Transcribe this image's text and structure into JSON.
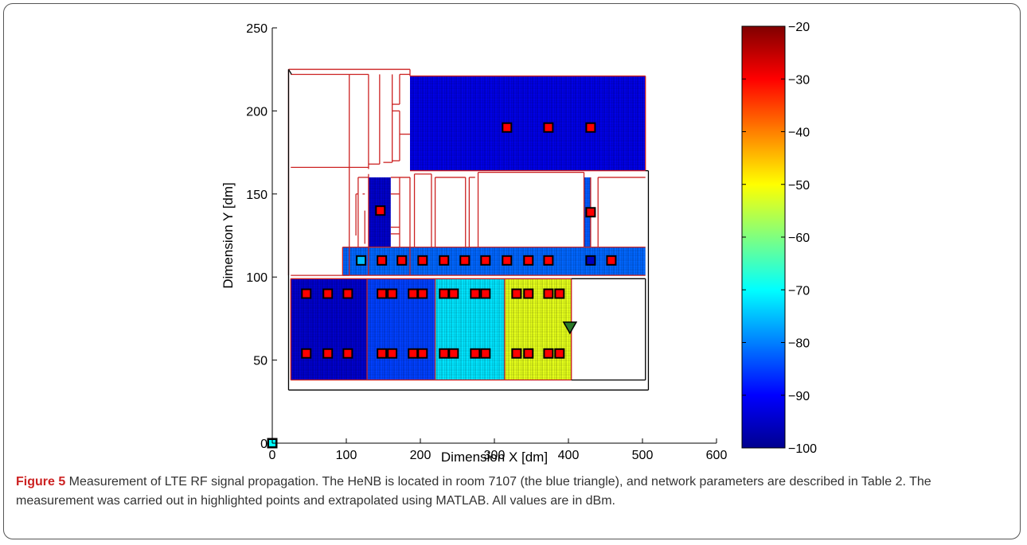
{
  "caption": {
    "label": "Figure 5",
    "text": " Measurement of LTE RF signal propagation. The HeNB is located in room 7107 (the blue triangle), and network parameters are described in Table 2. The measurement was carried out in highlighted points and extrapolated using MATLAB. All values are in dBm."
  },
  "chart_data": {
    "type": "heatmap",
    "xlabel": "Dimension X [dm]",
    "ylabel": "Dimension Y [dm]",
    "xlim": [
      0,
      600
    ],
    "ylim": [
      0,
      250
    ],
    "xticks": [
      0,
      100,
      200,
      300,
      400,
      500,
      600
    ],
    "yticks": [
      0,
      50,
      100,
      150,
      200,
      250
    ],
    "colorbar": {
      "colormap": "jet",
      "range": [
        -100,
        -20
      ],
      "ticks": [
        -20,
        -30,
        -40,
        -50,
        -60,
        -70,
        -80,
        -90,
        -100
      ]
    },
    "regions": [
      {
        "name": "room-top-right",
        "x": [
          186,
          504
        ],
        "y": [
          164,
          221
        ],
        "value": -92
      },
      {
        "name": "corridor-vertical",
        "x": [
          130,
          160
        ],
        "y": [
          118,
          160
        ],
        "value": -94
      },
      {
        "name": "corridor-right-stub",
        "x": [
          421,
          430
        ],
        "y": [
          118,
          160
        ],
        "value": -83
      },
      {
        "name": "corridor-horizontal",
        "x": [
          95,
          504
        ],
        "y": [
          101,
          118
        ],
        "value": -82
      },
      {
        "name": "room-bottom-1",
        "x": [
          25,
          128
        ],
        "y": [
          38,
          99
        ],
        "value": -94
      },
      {
        "name": "room-bottom-2",
        "x": [
          128,
          220
        ],
        "y": [
          38,
          99
        ],
        "value": -85
      },
      {
        "name": "room-bottom-3",
        "x": [
          220,
          314
        ],
        "y": [
          38,
          99
        ],
        "value": -72
      },
      {
        "name": "room-bottom-4",
        "x": [
          314,
          404
        ],
        "y": [
          38,
          99
        ],
        "value": -52
      }
    ],
    "measurement_points": [
      {
        "x": 317,
        "y": 190,
        "value": -30
      },
      {
        "x": 373,
        "y": 190,
        "value": -30
      },
      {
        "x": 430,
        "y": 190,
        "value": -30
      },
      {
        "x": 146,
        "y": 140,
        "value": -30
      },
      {
        "x": 430,
        "y": 139,
        "value": -30
      },
      {
        "x": 120,
        "y": 110,
        "value": -75
      },
      {
        "x": 148,
        "y": 110,
        "value": -30
      },
      {
        "x": 175,
        "y": 110,
        "value": -30
      },
      {
        "x": 203,
        "y": 110,
        "value": -30
      },
      {
        "x": 232,
        "y": 110,
        "value": -30
      },
      {
        "x": 260,
        "y": 110,
        "value": -30
      },
      {
        "x": 288,
        "y": 110,
        "value": -30
      },
      {
        "x": 317,
        "y": 110,
        "value": -30
      },
      {
        "x": 346,
        "y": 110,
        "value": -30
      },
      {
        "x": 373,
        "y": 110,
        "value": -30
      },
      {
        "x": 430,
        "y": 110,
        "value": -95
      },
      {
        "x": 458,
        "y": 110,
        "value": -30
      },
      {
        "x": 46,
        "y": 90,
        "value": -30
      },
      {
        "x": 75,
        "y": 90,
        "value": -30
      },
      {
        "x": 102,
        "y": 90,
        "value": -30
      },
      {
        "x": 148,
        "y": 90,
        "value": -30
      },
      {
        "x": 162,
        "y": 90,
        "value": -30
      },
      {
        "x": 190,
        "y": 90,
        "value": -30
      },
      {
        "x": 203,
        "y": 90,
        "value": -30
      },
      {
        "x": 232,
        "y": 90,
        "value": -30
      },
      {
        "x": 245,
        "y": 90,
        "value": -30
      },
      {
        "x": 274,
        "y": 90,
        "value": -30
      },
      {
        "x": 288,
        "y": 90,
        "value": -30
      },
      {
        "x": 330,
        "y": 90,
        "value": -30
      },
      {
        "x": 346,
        "y": 90,
        "value": -30
      },
      {
        "x": 373,
        "y": 90,
        "value": -30
      },
      {
        "x": 388,
        "y": 90,
        "value": -30
      },
      {
        "x": 46,
        "y": 54,
        "value": -30
      },
      {
        "x": 75,
        "y": 54,
        "value": -30
      },
      {
        "x": 102,
        "y": 54,
        "value": -30
      },
      {
        "x": 148,
        "y": 54,
        "value": -30
      },
      {
        "x": 162,
        "y": 54,
        "value": -30
      },
      {
        "x": 190,
        "y": 54,
        "value": -30
      },
      {
        "x": 203,
        "y": 54,
        "value": -30
      },
      {
        "x": 232,
        "y": 54,
        "value": -30
      },
      {
        "x": 245,
        "y": 54,
        "value": -30
      },
      {
        "x": 274,
        "y": 54,
        "value": -30
      },
      {
        "x": 288,
        "y": 54,
        "value": -30
      },
      {
        "x": 330,
        "y": 54,
        "value": -30
      },
      {
        "x": 346,
        "y": 54,
        "value": -30
      },
      {
        "x": 373,
        "y": 54,
        "value": -30
      },
      {
        "x": 388,
        "y": 54,
        "value": -30
      }
    ],
    "origin_marker": {
      "x": 0,
      "y": 0,
      "color": "#00ffff"
    },
    "henb": {
      "x": 402,
      "y": 70,
      "shape": "triangle-down",
      "color": "#2a7a2a"
    },
    "colors": {
      "walls": "#cc2222",
      "marker_edge": "#000000",
      "outline": "#000000"
    }
  }
}
